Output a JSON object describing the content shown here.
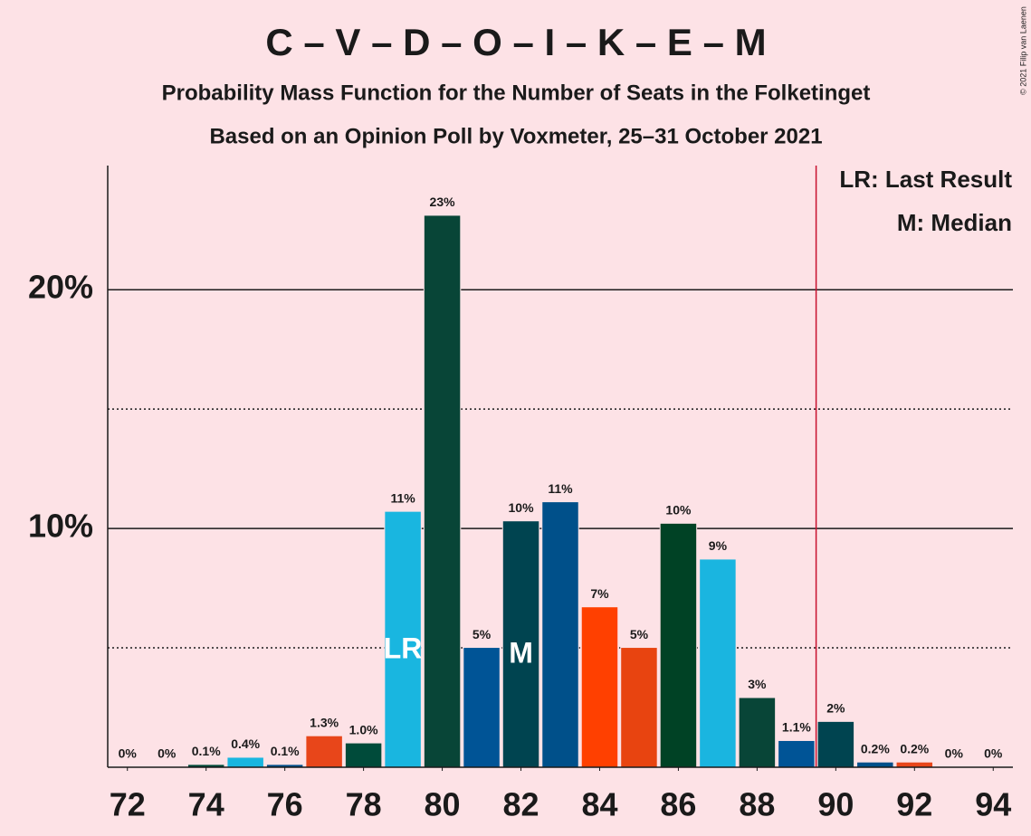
{
  "chart_data": {
    "type": "bar",
    "title": "C – V – D – O – I – K – E – M",
    "subtitle": "Probability Mass Function for the Number of Seats in the Folketinget",
    "subtitle2": "Based on an Opinion Poll by Voxmeter, 25–31 October 2021",
    "copyright": "© 2021 Filip van Laenen",
    "x": [
      72,
      73,
      74,
      75,
      76,
      77,
      78,
      79,
      80,
      81,
      82,
      83,
      84,
      85,
      86,
      87,
      88,
      89,
      90,
      91,
      92,
      93,
      94
    ],
    "values": [
      0,
      0,
      0.1,
      0.4,
      0.1,
      1.3,
      1.0,
      10.7,
      23.1,
      5.0,
      10.3,
      11.1,
      6.7,
      5.0,
      10.2,
      8.7,
      2.9,
      1.1,
      1.9,
      0.2,
      0.2,
      0,
      0
    ],
    "value_labels": [
      "0%",
      "0%",
      "0.1%",
      "0.4%",
      "0.1%",
      "1.3%",
      "1.0%",
      "11%",
      "23%",
      "5%",
      "10%",
      "11%",
      "7%",
      "5%",
      "10%",
      "9%",
      "3%",
      "1.1%",
      "2%",
      "0.2%",
      "0.2%",
      "0%",
      "0%"
    ],
    "colors": [
      "#00508a",
      "#e8461a",
      "#004b3a",
      "#19b6e0",
      "#00508a",
      "#e8461a",
      "#004b3a",
      "#19b6e0",
      "#084537",
      "#005496",
      "#004450",
      "#00508a",
      "#ff4000",
      "#e84410",
      "#004225",
      "#1ab5e0",
      "#084537",
      "#005496",
      "#004450",
      "#00508a",
      "#e8461a",
      "#004b3a",
      "#19b6e0"
    ],
    "xlim": [
      71.5,
      94.5
    ],
    "xticks": [
      72,
      74,
      76,
      78,
      80,
      82,
      84,
      86,
      88,
      90,
      92,
      94
    ],
    "ylim": [
      0,
      25.2
    ],
    "yticks": [
      {
        "value": 10,
        "label": "10%"
      },
      {
        "value": 20,
        "label": "20%"
      }
    ],
    "dotted_grid": [
      5,
      15
    ],
    "last_result": 79,
    "last_result_label": "LR",
    "median": 82,
    "median_label": "M",
    "majority_threshold": 90,
    "legend": [
      "LR: Last Result",
      "M: Median"
    ]
  }
}
